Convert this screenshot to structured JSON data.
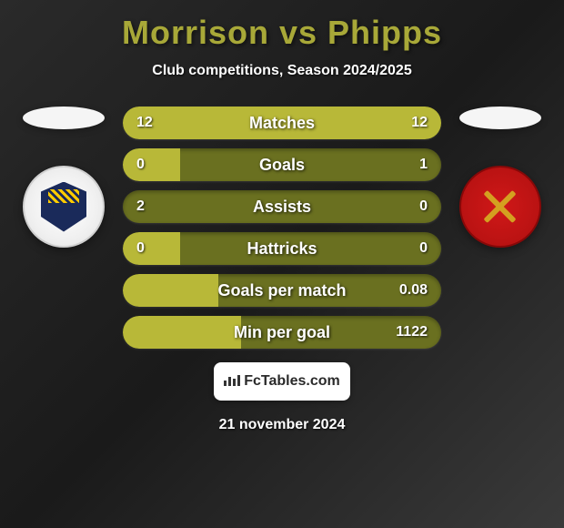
{
  "title": "Morrison vs Phipps",
  "subtitle": "Club competitions, Season 2024/2025",
  "date": "21 november 2024",
  "fctables_label": "FcTables.com",
  "colors": {
    "bar_bg": "#6a7020",
    "bar_fill": "#b8b838",
    "title_color": "#a8a838",
    "text_color": "#ffffff"
  },
  "stats": [
    {
      "label": "Matches",
      "left_value": "12",
      "right_value": "12",
      "left_pct": 50,
      "right_pct": 50,
      "fill_mode": "full"
    },
    {
      "label": "Goals",
      "left_value": "0",
      "right_value": "1",
      "left_pct": 18,
      "right_pct": 0,
      "fill_mode": "left"
    },
    {
      "label": "Assists",
      "left_value": "2",
      "right_value": "0",
      "left_pct": 0,
      "right_pct": 0,
      "fill_mode": "none"
    },
    {
      "label": "Hattricks",
      "left_value": "0",
      "right_value": "0",
      "left_pct": 18,
      "right_pct": 0,
      "fill_mode": "left"
    },
    {
      "label": "Goals per match",
      "left_value": "",
      "right_value": "0.08",
      "left_pct": 30,
      "right_pct": 0,
      "fill_mode": "left"
    },
    {
      "label": "Min per goal",
      "left_value": "",
      "right_value": "1122",
      "left_pct": 37,
      "right_pct": 0,
      "fill_mode": "left"
    }
  ]
}
